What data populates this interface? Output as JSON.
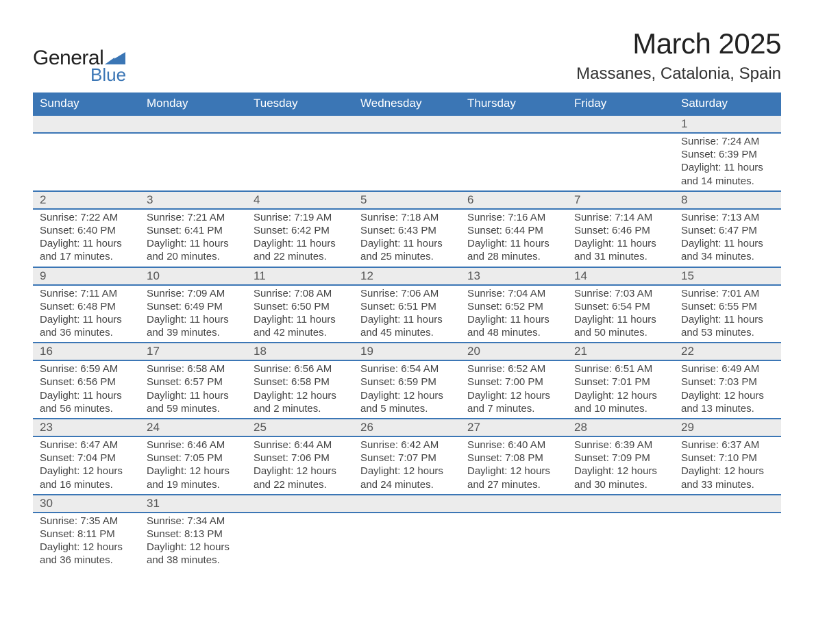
{
  "logo": {
    "word1": "General",
    "word2": "Blue",
    "text_color": "#222222",
    "accent_color": "#3b76b5"
  },
  "title": {
    "month": "March 2025",
    "location": "Massanes, Catalonia, Spain"
  },
  "colors": {
    "header_bg": "#3b76b5",
    "header_text": "#ffffff",
    "daynum_bg": "#ececec",
    "row_divider": "#3b76b5",
    "body_text": "#444444",
    "page_bg": "#ffffff"
  },
  "fonts": {
    "title_size_pt": 42,
    "location_size_pt": 24,
    "header_size_pt": 17,
    "cell_size_pt": 15,
    "family": "Arial"
  },
  "days_of_week": [
    "Sunday",
    "Monday",
    "Tuesday",
    "Wednesday",
    "Thursday",
    "Friday",
    "Saturday"
  ],
  "weeks": [
    [
      null,
      null,
      null,
      null,
      null,
      null,
      {
        "n": "1",
        "sunrise": "Sunrise: 7:24 AM",
        "sunset": "Sunset: 6:39 PM",
        "day1": "Daylight: 11 hours",
        "day2": "and 14 minutes."
      }
    ],
    [
      {
        "n": "2",
        "sunrise": "Sunrise: 7:22 AM",
        "sunset": "Sunset: 6:40 PM",
        "day1": "Daylight: 11 hours",
        "day2": "and 17 minutes."
      },
      {
        "n": "3",
        "sunrise": "Sunrise: 7:21 AM",
        "sunset": "Sunset: 6:41 PM",
        "day1": "Daylight: 11 hours",
        "day2": "and 20 minutes."
      },
      {
        "n": "4",
        "sunrise": "Sunrise: 7:19 AM",
        "sunset": "Sunset: 6:42 PM",
        "day1": "Daylight: 11 hours",
        "day2": "and 22 minutes."
      },
      {
        "n": "5",
        "sunrise": "Sunrise: 7:18 AM",
        "sunset": "Sunset: 6:43 PM",
        "day1": "Daylight: 11 hours",
        "day2": "and 25 minutes."
      },
      {
        "n": "6",
        "sunrise": "Sunrise: 7:16 AM",
        "sunset": "Sunset: 6:44 PM",
        "day1": "Daylight: 11 hours",
        "day2": "and 28 minutes."
      },
      {
        "n": "7",
        "sunrise": "Sunrise: 7:14 AM",
        "sunset": "Sunset: 6:46 PM",
        "day1": "Daylight: 11 hours",
        "day2": "and 31 minutes."
      },
      {
        "n": "8",
        "sunrise": "Sunrise: 7:13 AM",
        "sunset": "Sunset: 6:47 PM",
        "day1": "Daylight: 11 hours",
        "day2": "and 34 minutes."
      }
    ],
    [
      {
        "n": "9",
        "sunrise": "Sunrise: 7:11 AM",
        "sunset": "Sunset: 6:48 PM",
        "day1": "Daylight: 11 hours",
        "day2": "and 36 minutes."
      },
      {
        "n": "10",
        "sunrise": "Sunrise: 7:09 AM",
        "sunset": "Sunset: 6:49 PM",
        "day1": "Daylight: 11 hours",
        "day2": "and 39 minutes."
      },
      {
        "n": "11",
        "sunrise": "Sunrise: 7:08 AM",
        "sunset": "Sunset: 6:50 PM",
        "day1": "Daylight: 11 hours",
        "day2": "and 42 minutes."
      },
      {
        "n": "12",
        "sunrise": "Sunrise: 7:06 AM",
        "sunset": "Sunset: 6:51 PM",
        "day1": "Daylight: 11 hours",
        "day2": "and 45 minutes."
      },
      {
        "n": "13",
        "sunrise": "Sunrise: 7:04 AM",
        "sunset": "Sunset: 6:52 PM",
        "day1": "Daylight: 11 hours",
        "day2": "and 48 minutes."
      },
      {
        "n": "14",
        "sunrise": "Sunrise: 7:03 AM",
        "sunset": "Sunset: 6:54 PM",
        "day1": "Daylight: 11 hours",
        "day2": "and 50 minutes."
      },
      {
        "n": "15",
        "sunrise": "Sunrise: 7:01 AM",
        "sunset": "Sunset: 6:55 PM",
        "day1": "Daylight: 11 hours",
        "day2": "and 53 minutes."
      }
    ],
    [
      {
        "n": "16",
        "sunrise": "Sunrise: 6:59 AM",
        "sunset": "Sunset: 6:56 PM",
        "day1": "Daylight: 11 hours",
        "day2": "and 56 minutes."
      },
      {
        "n": "17",
        "sunrise": "Sunrise: 6:58 AM",
        "sunset": "Sunset: 6:57 PM",
        "day1": "Daylight: 11 hours",
        "day2": "and 59 minutes."
      },
      {
        "n": "18",
        "sunrise": "Sunrise: 6:56 AM",
        "sunset": "Sunset: 6:58 PM",
        "day1": "Daylight: 12 hours",
        "day2": "and 2 minutes."
      },
      {
        "n": "19",
        "sunrise": "Sunrise: 6:54 AM",
        "sunset": "Sunset: 6:59 PM",
        "day1": "Daylight: 12 hours",
        "day2": "and 5 minutes."
      },
      {
        "n": "20",
        "sunrise": "Sunrise: 6:52 AM",
        "sunset": "Sunset: 7:00 PM",
        "day1": "Daylight: 12 hours",
        "day2": "and 7 minutes."
      },
      {
        "n": "21",
        "sunrise": "Sunrise: 6:51 AM",
        "sunset": "Sunset: 7:01 PM",
        "day1": "Daylight: 12 hours",
        "day2": "and 10 minutes."
      },
      {
        "n": "22",
        "sunrise": "Sunrise: 6:49 AM",
        "sunset": "Sunset: 7:03 PM",
        "day1": "Daylight: 12 hours",
        "day2": "and 13 minutes."
      }
    ],
    [
      {
        "n": "23",
        "sunrise": "Sunrise: 6:47 AM",
        "sunset": "Sunset: 7:04 PM",
        "day1": "Daylight: 12 hours",
        "day2": "and 16 minutes."
      },
      {
        "n": "24",
        "sunrise": "Sunrise: 6:46 AM",
        "sunset": "Sunset: 7:05 PM",
        "day1": "Daylight: 12 hours",
        "day2": "and 19 minutes."
      },
      {
        "n": "25",
        "sunrise": "Sunrise: 6:44 AM",
        "sunset": "Sunset: 7:06 PM",
        "day1": "Daylight: 12 hours",
        "day2": "and 22 minutes."
      },
      {
        "n": "26",
        "sunrise": "Sunrise: 6:42 AM",
        "sunset": "Sunset: 7:07 PM",
        "day1": "Daylight: 12 hours",
        "day2": "and 24 minutes."
      },
      {
        "n": "27",
        "sunrise": "Sunrise: 6:40 AM",
        "sunset": "Sunset: 7:08 PM",
        "day1": "Daylight: 12 hours",
        "day2": "and 27 minutes."
      },
      {
        "n": "28",
        "sunrise": "Sunrise: 6:39 AM",
        "sunset": "Sunset: 7:09 PM",
        "day1": "Daylight: 12 hours",
        "day2": "and 30 minutes."
      },
      {
        "n": "29",
        "sunrise": "Sunrise: 6:37 AM",
        "sunset": "Sunset: 7:10 PM",
        "day1": "Daylight: 12 hours",
        "day2": "and 33 minutes."
      }
    ],
    [
      {
        "n": "30",
        "sunrise": "Sunrise: 7:35 AM",
        "sunset": "Sunset: 8:11 PM",
        "day1": "Daylight: 12 hours",
        "day2": "and 36 minutes."
      },
      {
        "n": "31",
        "sunrise": "Sunrise: 7:34 AM",
        "sunset": "Sunset: 8:13 PM",
        "day1": "Daylight: 12 hours",
        "day2": "and 38 minutes."
      },
      null,
      null,
      null,
      null,
      null
    ]
  ]
}
